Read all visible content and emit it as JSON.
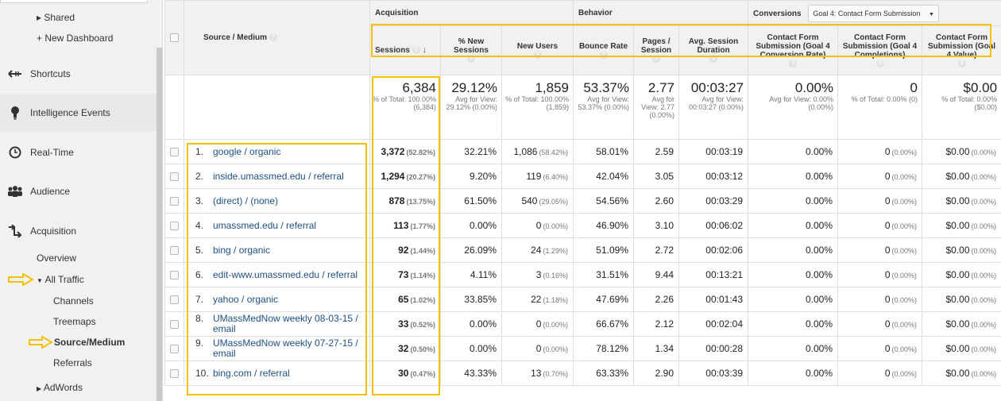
{
  "sidebar": {
    "shared_label": "▸ Shared",
    "new_dashboard_label": "+ New Dashboard",
    "main_items": [
      {
        "label": "Shortcuts",
        "icon": "shortcuts-icon"
      },
      {
        "label": "Intelligence Events",
        "icon": "lightbulb-icon"
      },
      {
        "label": "Real-Time",
        "icon": "clock-icon"
      },
      {
        "label": "Audience",
        "icon": "people-icon"
      },
      {
        "label": "Acquisition",
        "icon": "acquisition-icon"
      }
    ],
    "acquisition_items": {
      "overview": "Overview",
      "all_traffic": "All Traffic",
      "channels": "Channels",
      "treemaps": "Treemaps",
      "source_medium": "Source/Medium",
      "referrals": "Referrals",
      "adwords": "AdWords"
    }
  },
  "report": {
    "dimension_header": "Source / Medium",
    "groups": {
      "acquisition": "Acquisition",
      "behavior": "Behavior",
      "conversions": "Conversions",
      "goal_select": "Goal 4: Contact Form Submission"
    },
    "columns": [
      {
        "key": "sessions",
        "label": "Sessions"
      },
      {
        "key": "pct_new",
        "label": "% New Sessions"
      },
      {
        "key": "new_users",
        "label": "New Users"
      },
      {
        "key": "bounce",
        "label": "Bounce Rate"
      },
      {
        "key": "pps",
        "label": "Pages / Session"
      },
      {
        "key": "asd",
        "label": "Avg. Session Duration"
      },
      {
        "key": "conv_rate",
        "label": "Contact Form Submission (Goal 4 Conversion Rate)"
      },
      {
        "key": "completions",
        "label": "Contact Form Submission (Goal 4 Completions)"
      },
      {
        "key": "value",
        "label": "Contact Form Submission (Goal 4 Value)"
      }
    ],
    "totals": {
      "sessions": {
        "big": "6,384",
        "sub": "% of Total: 100.00% (6,384)"
      },
      "pct_new": {
        "big": "29.12%",
        "sub": "Avg for View: 29.12% (0.00%)"
      },
      "new_users": {
        "big": "1,859",
        "sub": "% of Total: 100.00% (1,859)"
      },
      "bounce": {
        "big": "53.37%",
        "sub": "Avg for View: 53.37% (0.00%)"
      },
      "pps": {
        "big": "2.77",
        "sub": "Avg for View: 2.77 (0.00%)"
      },
      "asd": {
        "big": "00:03:27",
        "sub": "Avg for View: 00:03:27 (0.00%)"
      },
      "conv_rate": {
        "big": "0.00%",
        "sub": "Avg for View: 0.00% (0.00%)"
      },
      "completions": {
        "big": "0",
        "sub": "% of Total: 0.00% (0)"
      },
      "value": {
        "big": "$0.00",
        "sub": "% of Total: 0.00% ($0.00)"
      }
    },
    "rows": [
      {
        "idx": "1.",
        "source": "google / organic",
        "sessions": "3,372",
        "sessions_pct": "(52.82%)",
        "pct_new": "32.21%",
        "new_users": "1,086",
        "new_users_pct": "(58.42%)",
        "bounce": "58.01%",
        "pps": "2.59",
        "asd": "00:03:19",
        "conv_rate": "0.00%",
        "completions": "0",
        "completions_pct": "(0.00%)",
        "value": "$0.00",
        "value_pct": "(0.00%)"
      },
      {
        "idx": "2.",
        "source": "inside.umassmed.edu / referral",
        "sessions": "1,294",
        "sessions_pct": "(20.27%)",
        "pct_new": "9.20%",
        "new_users": "119",
        "new_users_pct": "(6.40%)",
        "bounce": "42.04%",
        "pps": "3.05",
        "asd": "00:03:12",
        "conv_rate": "0.00%",
        "completions": "0",
        "completions_pct": "(0.00%)",
        "value": "$0.00",
        "value_pct": "(0.00%)"
      },
      {
        "idx": "3.",
        "source": "(direct) / (none)",
        "sessions": "878",
        "sessions_pct": "(13.75%)",
        "pct_new": "61.50%",
        "new_users": "540",
        "new_users_pct": "(29.05%)",
        "bounce": "54.56%",
        "pps": "2.60",
        "asd": "00:03:29",
        "conv_rate": "0.00%",
        "completions": "0",
        "completions_pct": "(0.00%)",
        "value": "$0.00",
        "value_pct": "(0.00%)"
      },
      {
        "idx": "4.",
        "source": "umassmed.edu / referral",
        "sessions": "113",
        "sessions_pct": "(1.77%)",
        "pct_new": "0.00%",
        "new_users": "0",
        "new_users_pct": "(0.00%)",
        "bounce": "46.90%",
        "pps": "3.10",
        "asd": "00:06:02",
        "conv_rate": "0.00%",
        "completions": "0",
        "completions_pct": "(0.00%)",
        "value": "$0.00",
        "value_pct": "(0.00%)"
      },
      {
        "idx": "5.",
        "source": "bing / organic",
        "sessions": "92",
        "sessions_pct": "(1.44%)",
        "pct_new": "26.09%",
        "new_users": "24",
        "new_users_pct": "(1.29%)",
        "bounce": "51.09%",
        "pps": "2.72",
        "asd": "00:02:06",
        "conv_rate": "0.00%",
        "completions": "0",
        "completions_pct": "(0.00%)",
        "value": "$0.00",
        "value_pct": "(0.00%)"
      },
      {
        "idx": "6.",
        "source": "edit-www.umassmed.edu / referral",
        "sessions": "73",
        "sessions_pct": "(1.14%)",
        "pct_new": "4.11%",
        "new_users": "3",
        "new_users_pct": "(0.16%)",
        "bounce": "31.51%",
        "pps": "9.44",
        "asd": "00:13:21",
        "conv_rate": "0.00%",
        "completions": "0",
        "completions_pct": "(0.00%)",
        "value": "$0.00",
        "value_pct": "(0.00%)"
      },
      {
        "idx": "7.",
        "source": "yahoo / organic",
        "sessions": "65",
        "sessions_pct": "(1.02%)",
        "pct_new": "33.85%",
        "new_users": "22",
        "new_users_pct": "(1.18%)",
        "bounce": "47.69%",
        "pps": "2.26",
        "asd": "00:01:43",
        "conv_rate": "0.00%",
        "completions": "0",
        "completions_pct": "(0.00%)",
        "value": "$0.00",
        "value_pct": "(0.00%)"
      },
      {
        "idx": "8.",
        "source": "UMassMedNow weekly 08-03-15 / email",
        "sessions": "33",
        "sessions_pct": "(0.52%)",
        "pct_new": "0.00%",
        "new_users": "0",
        "new_users_pct": "(0.00%)",
        "bounce": "66.67%",
        "pps": "2.12",
        "asd": "00:02:04",
        "conv_rate": "0.00%",
        "completions": "0",
        "completions_pct": "(0.00%)",
        "value": "$0.00",
        "value_pct": "(0.00%)"
      },
      {
        "idx": "9.",
        "source": "UMassMedNow weekly 07-27-15 / email",
        "sessions": "32",
        "sessions_pct": "(0.50%)",
        "pct_new": "0.00%",
        "new_users": "0",
        "new_users_pct": "(0.00%)",
        "bounce": "78.12%",
        "pps": "1.34",
        "asd": "00:00:28",
        "conv_rate": "0.00%",
        "completions": "0",
        "completions_pct": "(0.00%)",
        "value": "$0.00",
        "value_pct": "(0.00%)"
      },
      {
        "idx": "10.",
        "source": "bing.com / referral",
        "sessions": "30",
        "sessions_pct": "(0.47%)",
        "pct_new": "43.33%",
        "new_users": "13",
        "new_users_pct": "(0.70%)",
        "bounce": "63.33%",
        "pps": "2.90",
        "asd": "00:03:39",
        "conv_rate": "0.00%",
        "completions": "0",
        "completions_pct": "(0.00%)",
        "value": "$0.00",
        "value_pct": "(0.00%)"
      }
    ]
  },
  "colors": {
    "annotation": "#f2c100",
    "link": "#1f4f82",
    "header_bg": "#f1f1f1"
  }
}
